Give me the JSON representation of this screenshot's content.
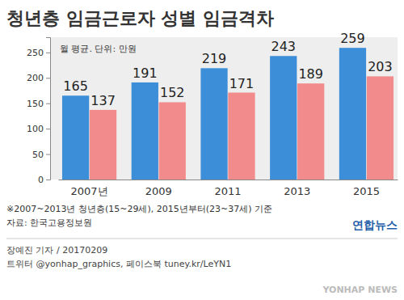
{
  "chart_data": {
    "type": "bar",
    "title": "청년층 임금근로자 성별 임금격차",
    "subtitle": "월 평균. 단위: 만원",
    "categories": [
      "2007년",
      "2009",
      "2011",
      "2013",
      "2015"
    ],
    "series": [
      {
        "color": "#3d8ed8",
        "values": [
          165,
          191,
          219,
          243,
          259
        ]
      },
      {
        "color": "#f28b8b",
        "values": [
          137,
          152,
          171,
          189,
          203
        ]
      }
    ],
    "ylim": [
      0,
      280
    ],
    "yticks": [
      0,
      50,
      100,
      150,
      200,
      250
    ],
    "grid": false,
    "data_labels": true,
    "annotations": [
      "※2007~2013년 청년층(15~29세), 2015년부터(23~37세) 기준",
      "자료: 한국고용정보원",
      "연합뉴스",
      "장예진 기자 / 20170209",
      "트위터 @yonhap_graphics, 페이스북 tuney.kr/LeYN1",
      "YONHAP NEWS"
    ]
  }
}
